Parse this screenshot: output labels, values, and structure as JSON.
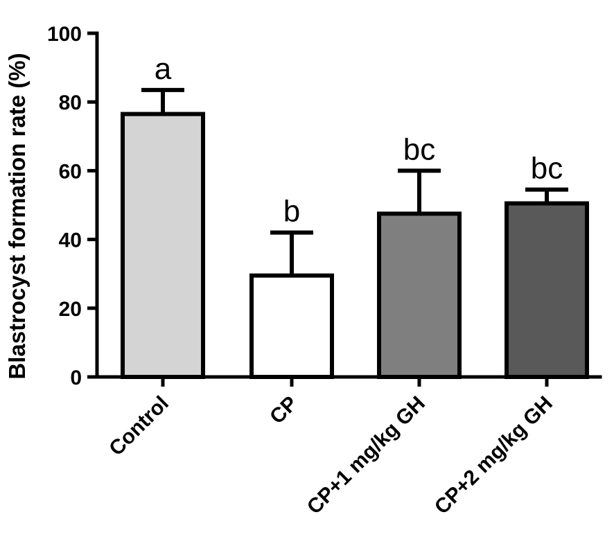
{
  "chart_data": {
    "type": "bar",
    "title": "",
    "xlabel": "",
    "ylabel": "Blastrocyst formation rate (%)",
    "ylim": [
      0,
      100
    ],
    "yticks": [
      0,
      20,
      40,
      60,
      80,
      100
    ],
    "categories": [
      "Control",
      "CP",
      "CP+1 mg/kg GH",
      "CP+2 mg/kg GH"
    ],
    "values": [
      76.5,
      29.5,
      47.5,
      50.5
    ],
    "errors": [
      7,
      12.5,
      12.5,
      4
    ],
    "significance_labels": [
      "a",
      "b",
      "bc",
      "bc"
    ],
    "bar_colors": [
      "#d4d4d4",
      "#ffffff",
      "#7f7f7f",
      "#595959"
    ],
    "grid": false,
    "legend": "none"
  }
}
